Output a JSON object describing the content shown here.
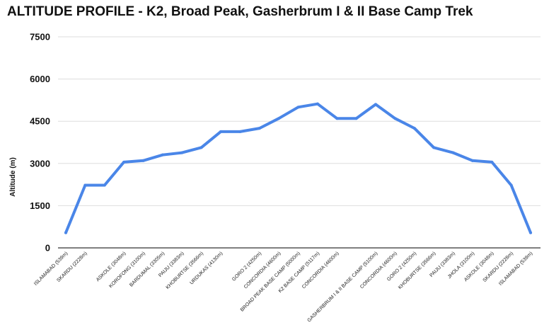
{
  "chart_data": {
    "type": "line",
    "title": "ALTITUDE PROFILE - K2, Broad Peak, Gasherbrum I & II Base Camp Trek",
    "ylabel": "Altitude (m)",
    "xlabel": "",
    "ylim": [
      0,
      7500
    ],
    "yticks": [
      "0",
      "1500",
      "3000",
      "4500",
      "6000",
      "7500"
    ],
    "grid": true,
    "legend": "none",
    "line_color": "#4a86e8",
    "categories": [
      "ISLAMABAD (539m)",
      "SKARDU (2228m)",
      "",
      "ASKOLE (3048m)",
      "KOROFONG (3100m)",
      "BARDUMAL (3305m)",
      "PAIJU (3383m)",
      "KHOBURTSE (3566m)",
      "URDUKAS (4130m)",
      "",
      "GORO 2 (4250m)",
      "CONCORDIA (4600m)",
      "BROAD PEAK BASE CAMP (5000m)",
      "K2 BASE CAMP (5117m)",
      "CONCORDIA (4600m)",
      "",
      "GASHERBRUM I & II BASE CAMP (5100m)",
      "CONCORDIA (4600m)",
      "GORO 2 (4250m)",
      "KHOBURTSE (3566m)",
      "PAIJU (3383m)",
      "JHOLA (3100m)",
      "ASKOLE (3048m)",
      "SKARDU (2228m)",
      "ISLAMABAD (539m)"
    ],
    "series": [
      {
        "values": [
          539,
          2228,
          2228,
          3048,
          3100,
          3305,
          3383,
          3566,
          4130,
          4130,
          4250,
          4600,
          5000,
          5117,
          4600,
          4600,
          5100,
          4600,
          4250,
          3566,
          3383,
          3100,
          3048,
          2228,
          539
        ]
      }
    ]
  }
}
